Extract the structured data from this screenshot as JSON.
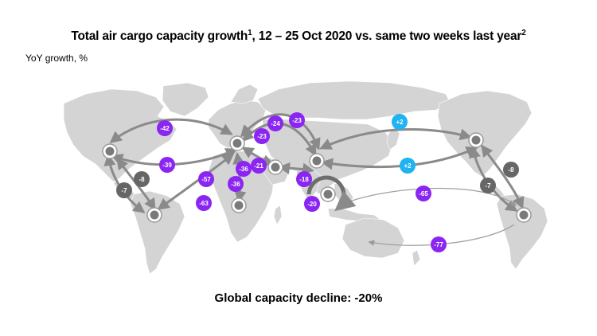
{
  "header": {
    "title": "Total air cargo capacity growth",
    "title_note": "1",
    "title_rest": ", 12 – 25 Oct 2020 vs. same two weeks last year",
    "title_note2": "2",
    "subtitle": "YoY growth, %"
  },
  "footer": {
    "text": "Global capacity decline: -20%"
  },
  "colors": {
    "land": "#d4d4d4",
    "arrow": "#8a8a8a",
    "hub": "#7a7a7a",
    "purple": "#8a25f2",
    "cyan": "#1fb3f1",
    "gray_badge": "#666666"
  },
  "hubs": [
    {
      "id": "north-america"
    },
    {
      "id": "south-america"
    },
    {
      "id": "europe"
    },
    {
      "id": "africa"
    },
    {
      "id": "middle-east"
    },
    {
      "id": "south-asia"
    },
    {
      "id": "asia-pacific"
    },
    {
      "id": "us-pacific"
    },
    {
      "id": "latin-america-east"
    }
  ],
  "badges": [
    {
      "value": "-42",
      "color": "purple"
    },
    {
      "value": "-39",
      "color": "purple"
    },
    {
      "value": "-24",
      "color": "purple"
    },
    {
      "value": "-23",
      "color": "purple"
    },
    {
      "value": "-23",
      "color": "purple"
    },
    {
      "value": "-21",
      "color": "purple"
    },
    {
      "value": "-36",
      "color": "purple"
    },
    {
      "value": "-36",
      "color": "purple"
    },
    {
      "value": "-57",
      "color": "purple"
    },
    {
      "value": "-63",
      "color": "purple"
    },
    {
      "value": "-18",
      "color": "purple"
    },
    {
      "value": "-20",
      "color": "purple"
    },
    {
      "value": "+2",
      "color": "cyan"
    },
    {
      "value": "+2",
      "color": "cyan"
    },
    {
      "value": "-65",
      "color": "purple"
    },
    {
      "value": "-77",
      "color": "purple"
    },
    {
      "value": "-8",
      "color": "gray_badge"
    },
    {
      "value": "-7",
      "color": "gray_badge"
    },
    {
      "value": "-8",
      "color": "gray_badge"
    },
    {
      "value": "-7",
      "color": "gray_badge"
    }
  ]
}
